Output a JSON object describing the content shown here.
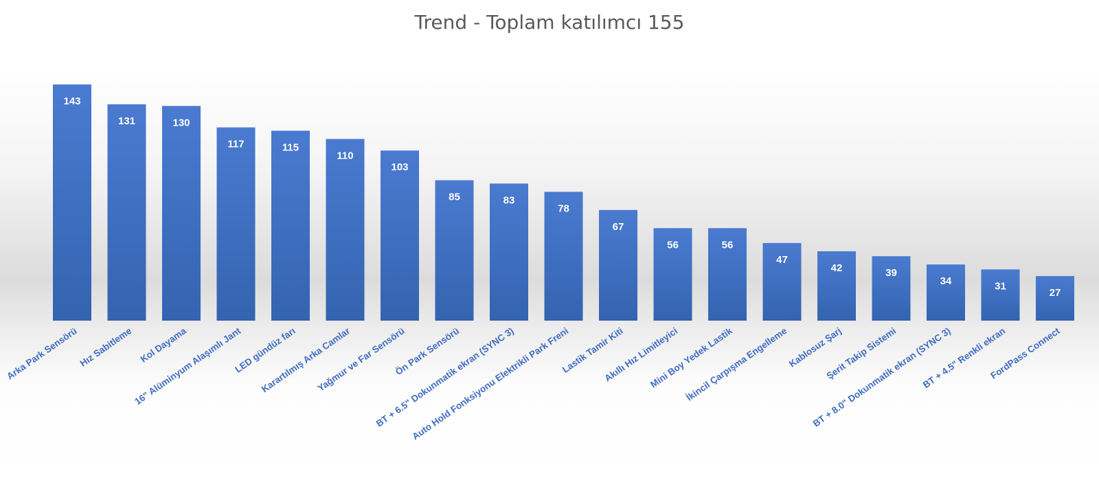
{
  "chart_data": {
    "type": "bar",
    "title": "Trend - Toplam katılımcı 155",
    "xlabel": "",
    "ylabel": "",
    "categories": [
      "Arka Park Sensörü",
      "Hız Sabitleme",
      "Kol Dayama",
      "16\" Alüminyum Alaşımlı Jant",
      "LED gündüz farı",
      "Karartılmış Arka Camlar",
      "Yağmur ve Far Sensörü",
      "Ön Park Sensörü",
      "BT + 6.5\" Dokunmatik ekran (SYNC 3)",
      "Auto Hold Fonksiyonu Elektrikli Park Freni",
      "Lastik Tamir Kiti",
      "Akıllı Hız Limitleyici",
      "Mini Boy Yedek Lastik",
      "İkincil Çarpışma Engelleme",
      "Kablosuz Şarj",
      "Şerit Takip Sistemi",
      "BT + 8.0\" Dokunmatik ekran (SYNC 3)",
      "BT + 4.5\" Renkli ekran",
      "FordPass Connect"
    ],
    "values": [
      143,
      131,
      130,
      117,
      115,
      110,
      103,
      85,
      83,
      78,
      67,
      56,
      56,
      47,
      42,
      39,
      34,
      31,
      27
    ],
    "ylim": [
      0,
      143
    ],
    "grid": false,
    "legend": "none",
    "data_labels": true,
    "bar_color": "#4472c4",
    "label_color": "#3f6dc0"
  }
}
